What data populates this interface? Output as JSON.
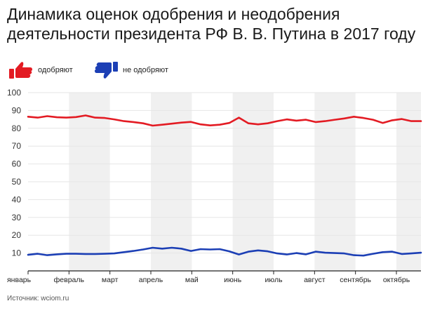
{
  "title": "Динамика оценок одобрения и неодобрения деятельности президента РФ В. В. Путина в 2017 году",
  "source": "Источник: wciom.ru",
  "colors": {
    "approve": "#e31b23",
    "disapprove": "#1c3fb5",
    "band": "#f0f0f0",
    "grid": "#e6e6e6",
    "axis": "#222222"
  },
  "legend": [
    {
      "label": "одобряют",
      "icon": "thumb-up-icon",
      "color": "#e31b23"
    },
    {
      "label": "не одобряют",
      "icon": "thumb-down-icon",
      "color": "#1c3fb5"
    }
  ],
  "chart_data": {
    "type": "line",
    "title": "Динамика оценок одобрения и неодобрения деятельности президента РФ В. В. Путина в 2017 году",
    "xlabel": "",
    "ylabel": "",
    "ylim": [
      0,
      100
    ],
    "yticks": [
      10,
      20,
      30,
      40,
      50,
      60,
      70,
      80,
      90,
      100
    ],
    "month_labels": [
      "январь",
      "февраль",
      "март",
      "апрель",
      "май",
      "июнь",
      "июль",
      "август",
      "сентябрь",
      "октябрь"
    ],
    "grid": true,
    "legend_position": "top-left",
    "series": [
      {
        "name": "одобряют",
        "color": "#e31b23",
        "values": [
          86.5,
          86.0,
          86.8,
          86.2,
          86.0,
          86.3,
          87.2,
          86.0,
          85.8,
          85.0,
          84.0,
          83.5,
          82.8,
          81.5,
          82.0,
          82.6,
          83.2,
          83.6,
          82.2,
          81.6,
          82.0,
          83.0,
          86.0,
          82.8,
          82.2,
          82.8,
          84.0,
          85.0,
          84.3,
          84.8,
          83.5,
          84.0,
          84.8,
          85.5,
          86.5,
          85.8,
          84.8,
          83.0,
          84.5,
          85.2,
          84.0,
          84.0
        ]
      },
      {
        "name": "не одобряют",
        "color": "#1c3fb5",
        "values": [
          9.0,
          9.6,
          8.8,
          9.3,
          9.6,
          9.6,
          9.5,
          9.5,
          9.6,
          9.8,
          10.5,
          11.2,
          12.0,
          13.0,
          12.5,
          13.0,
          12.5,
          11.2,
          12.2,
          12.0,
          12.2,
          11.0,
          9.2,
          10.8,
          11.5,
          11.0,
          9.8,
          9.2,
          10.0,
          9.3,
          10.8,
          10.2,
          10.0,
          9.8,
          8.8,
          8.6,
          9.6,
          10.5,
          10.8,
          9.5,
          9.8,
          10.2
        ]
      }
    ]
  }
}
